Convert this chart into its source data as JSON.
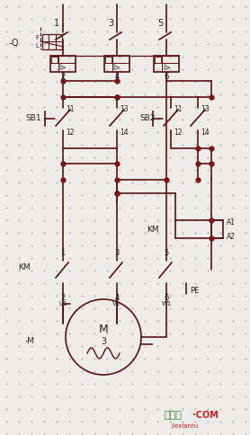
{
  "bg_color": "#eeece8",
  "line_color": "#5a1010",
  "dot_color": "#7a1515",
  "text_color": "#222222",
  "grid_color": "#bbbbbb",
  "fig_width": 2.78,
  "fig_height": 4.84,
  "dpi": 100,
  "watermark_text1": "接线图",
  "watermark_text2": "·COM",
  "watermark_text3": "jiexiantu",
  "watermark_color1": "#2a8a2a",
  "watermark_color2": "#cc2222"
}
